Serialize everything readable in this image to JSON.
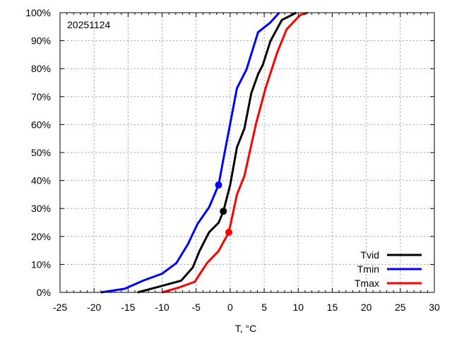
{
  "chart_data": {
    "type": "line",
    "title": "20251124",
    "xlabel": "T, °C",
    "ylabel": "",
    "xlim": [
      -25,
      30
    ],
    "ylim": [
      0,
      100
    ],
    "x_ticks": [
      -25,
      -20,
      -15,
      -10,
      -5,
      0,
      5,
      10,
      15,
      20,
      25,
      30
    ],
    "y_ticks": [
      0,
      10,
      20,
      30,
      40,
      50,
      60,
      70,
      80,
      90,
      100
    ],
    "y_tick_suffix": "%",
    "grid": true,
    "legend_position": "bottom-right",
    "series": [
      {
        "name": "Tvid",
        "color": "#000000",
        "marker": {
          "x": -1.0,
          "y": 29
        },
        "points": [
          [
            -13.6,
            0
          ],
          [
            -11.0,
            1.7
          ],
          [
            -7.2,
            4.2
          ],
          [
            -5.5,
            8.9
          ],
          [
            -4.5,
            14.8
          ],
          [
            -3.1,
            21.5
          ],
          [
            -1.7,
            24.9
          ],
          [
            -1.0,
            29
          ],
          [
            0,
            38.4
          ],
          [
            1.0,
            51.9
          ],
          [
            2.1,
            58.6
          ],
          [
            3.1,
            71.2
          ],
          [
            4.1,
            78
          ],
          [
            4.8,
            81.4
          ],
          [
            5.9,
            89.8
          ],
          [
            7.6,
            97.4
          ],
          [
            9.7,
            100
          ]
        ]
      },
      {
        "name": "Tmin",
        "color": "#0000ff",
        "marker": {
          "x": -1.7,
          "y": 38.4
        },
        "points": [
          [
            -19,
            0
          ],
          [
            -15.5,
            1.3
          ],
          [
            -12.8,
            4.2
          ],
          [
            -10,
            6.7
          ],
          [
            -7.9,
            10.5
          ],
          [
            -6.2,
            17.3
          ],
          [
            -4.8,
            24.5
          ],
          [
            -3.1,
            30.4
          ],
          [
            -1.7,
            38.4
          ],
          [
            -1.0,
            47.6
          ],
          [
            0,
            60.3
          ],
          [
            1.0,
            73
          ],
          [
            2.4,
            79.7
          ],
          [
            4.1,
            93
          ],
          [
            5.9,
            96.5
          ],
          [
            7.2,
            100
          ]
        ]
      },
      {
        "name": "Tmax",
        "color": "#ff0000",
        "marker": {
          "x": -0.2,
          "y": 21.5
        },
        "points": [
          [
            -10,
            0
          ],
          [
            -7.6,
            1.7
          ],
          [
            -5.2,
            3.8
          ],
          [
            -3.4,
            10.5
          ],
          [
            -1.7,
            14.8
          ],
          [
            -0.2,
            21.5
          ],
          [
            1.0,
            35
          ],
          [
            2.1,
            41.7
          ],
          [
            3.8,
            60.3
          ],
          [
            5.2,
            73
          ],
          [
            6.9,
            85.7
          ],
          [
            8.3,
            94.1
          ],
          [
            10.3,
            99.2
          ],
          [
            11.4,
            100
          ]
        ]
      }
    ]
  }
}
